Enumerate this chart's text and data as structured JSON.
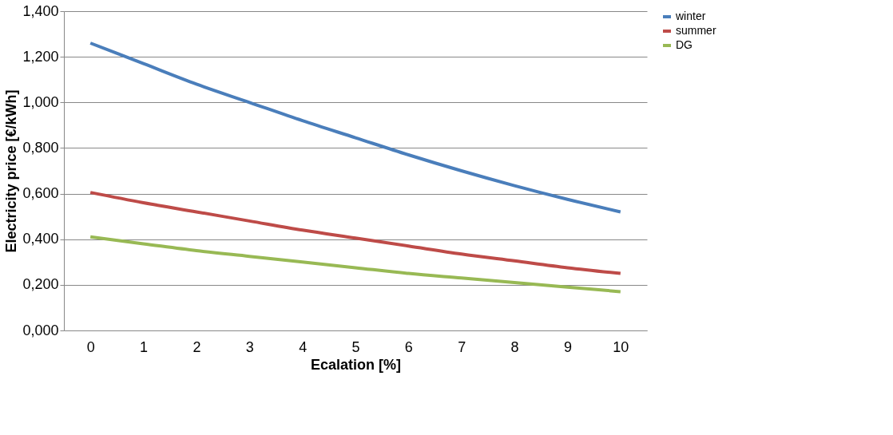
{
  "chart_data": {
    "type": "line",
    "xlabel": "Ecalation [%]",
    "ylabel": "Electricity price [€/kWh]",
    "categories": [
      "0",
      "1",
      "2",
      "3",
      "4",
      "5",
      "6",
      "7",
      "8",
      "9",
      "10"
    ],
    "series": [
      {
        "name": "winter",
        "color": "#4a7ebb",
        "values": [
          1.26,
          1.17,
          1.08,
          1.0,
          0.92,
          0.845,
          0.77,
          0.7,
          0.635,
          0.575,
          0.52
        ]
      },
      {
        "name": "summer",
        "color": "#be4b48",
        "values": [
          0.605,
          0.56,
          0.52,
          0.48,
          0.44,
          0.405,
          0.37,
          0.335,
          0.305,
          0.275,
          0.25
        ]
      },
      {
        "name": "DG",
        "color": "#98b954",
        "values": [
          0.41,
          0.38,
          0.35,
          0.325,
          0.3,
          0.275,
          0.25,
          0.23,
          0.21,
          0.19,
          0.17
        ]
      }
    ],
    "ylim": [
      0,
      1.4
    ],
    "yticks": [
      {
        "value": 0,
        "label": "0,000"
      },
      {
        "value": 0.2,
        "label": "0,200"
      },
      {
        "value": 0.4,
        "label": "0,400"
      },
      {
        "value": 0.6,
        "label": "0,600"
      },
      {
        "value": 0.8,
        "label": "0,800"
      },
      {
        "value": 1.0,
        "label": "1,000"
      },
      {
        "value": 1.2,
        "label": "1,200"
      },
      {
        "value": 1.4,
        "label": "1,400"
      }
    ],
    "grid": "y",
    "legend": "right",
    "marker": "none",
    "line_style": "solid"
  }
}
